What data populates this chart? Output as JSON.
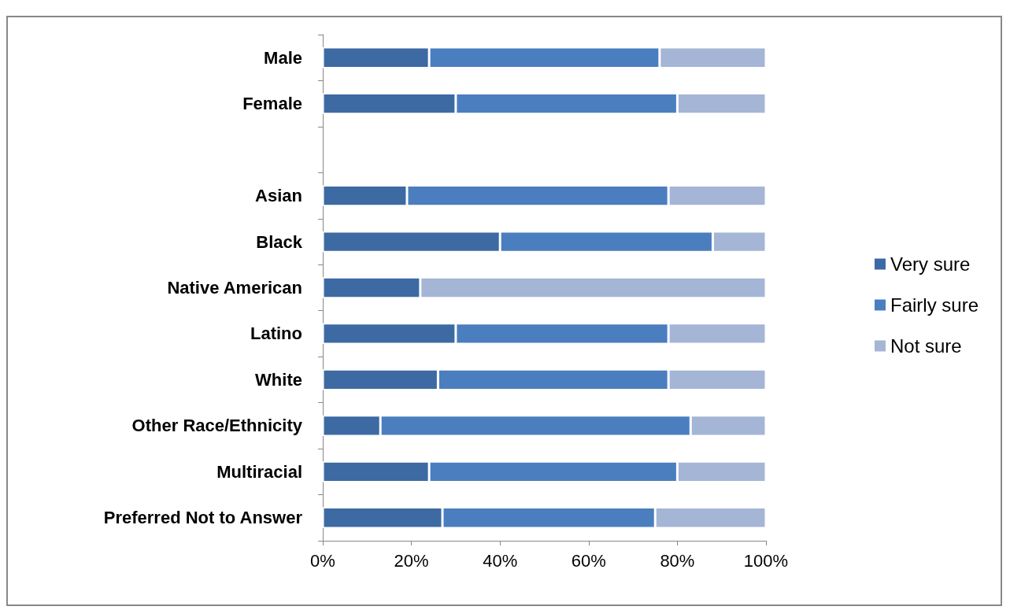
{
  "chart_data": {
    "type": "bar",
    "orientation": "horizontal",
    "stacked": true,
    "categories": [
      "Male",
      "Female",
      null,
      "Asian",
      "Black",
      "Native American",
      "Latino",
      "White",
      "Other Race/Ethnicity",
      "Multiracial",
      "Preferred Not to Answer"
    ],
    "series": [
      {
        "name": "Very sure",
        "color": "#3d6aa3",
        "values": [
          24,
          30,
          null,
          19,
          40,
          22,
          30,
          26,
          13,
          24,
          27
        ]
      },
      {
        "name": "Fairly sure",
        "color": "#4a7ebf",
        "values": [
          52,
          50,
          null,
          59,
          48,
          0,
          48,
          52,
          70,
          56,
          48
        ]
      },
      {
        "name": "Not sure",
        "color": "#a5b5d6",
        "values": [
          24,
          20,
          null,
          22,
          12,
          78,
          22,
          22,
          17,
          20,
          25
        ]
      }
    ],
    "xlim": [
      0,
      100
    ],
    "xticks": [
      {
        "value": 0,
        "label": "0%"
      },
      {
        "value": 20,
        "label": "20%"
      },
      {
        "value": 40,
        "label": "40%"
      },
      {
        "value": 60,
        "label": "60%"
      },
      {
        "value": 80,
        "label": "80%"
      },
      {
        "value": 100,
        "label": "100%"
      }
    ],
    "grid": false,
    "legend": "right"
  }
}
